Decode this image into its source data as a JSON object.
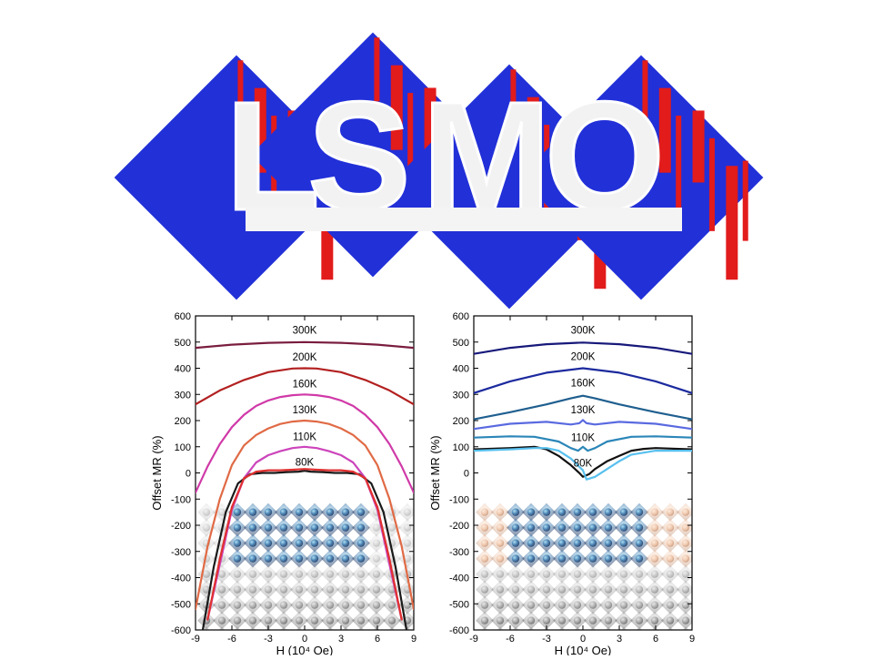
{
  "banner": {
    "letters": [
      "L",
      "S",
      "M",
      "O"
    ],
    "colors": {
      "domain_a": "#2230d8",
      "domain_b": "#e21b1b",
      "letter": "#f2f2f2"
    }
  },
  "chart_data": [
    {
      "type": "line",
      "xlabel": "H (10⁴ Oe)",
      "ylabel": "Offset MR (%)",
      "xlim": [
        -9,
        9
      ],
      "ylim": [
        -600,
        600
      ],
      "xticks": [
        "-9",
        "-6",
        "-3",
        "0",
        "3",
        "6",
        "9"
      ],
      "yticks": [
        "600",
        "500",
        "400",
        "300",
        "200",
        "100",
        "0",
        "-100",
        "-200",
        "-300",
        "-400",
        "-500",
        "-600"
      ],
      "grid": false,
      "series": [
        {
          "name": "300K",
          "color": "#7a1d3e",
          "x": [
            -9,
            -6,
            -3,
            0,
            3,
            6,
            9
          ],
          "y": [
            478,
            490,
            497,
            500,
            497,
            490,
            478
          ]
        },
        {
          "name": "200K",
          "color": "#b32020",
          "x": [
            -9,
            -7,
            -5,
            -3,
            -1,
            0,
            1,
            3,
            5,
            7,
            9
          ],
          "y": [
            262,
            315,
            355,
            385,
            399,
            400,
            399,
            385,
            355,
            315,
            262
          ]
        },
        {
          "name": "160K",
          "color": "#d03aa8",
          "x": [
            -9,
            -8,
            -7,
            -6,
            -5,
            -4,
            -3,
            -2,
            -1,
            0,
            1,
            2,
            3,
            4,
            5,
            6,
            7,
            8,
            9
          ],
          "y": [
            -75,
            25,
            110,
            175,
            222,
            256,
            277,
            290,
            297,
            300,
            297,
            290,
            277,
            256,
            222,
            175,
            110,
            25,
            -75
          ]
        },
        {
          "name": "130K",
          "color": "#e06a45",
          "x": [
            -9,
            -8,
            -7,
            -6,
            -5,
            -4,
            -3,
            -2,
            -1,
            0,
            1,
            2,
            3,
            4,
            5,
            6,
            7,
            8,
            9
          ],
          "y": [
            -520,
            -280,
            -100,
            30,
            105,
            145,
            170,
            187,
            196,
            200,
            196,
            187,
            170,
            145,
            105,
            30,
            -100,
            -280,
            -520
          ]
        },
        {
          "name": "110K",
          "color": "#cc44bb",
          "x": [
            -8,
            -7,
            -6,
            -5,
            -4,
            -3,
            -2,
            -1,
            0,
            1,
            2,
            3,
            4,
            5,
            6,
            7,
            8
          ],
          "y": [
            -560,
            -350,
            -140,
            -20,
            40,
            68,
            83,
            95,
            100,
            95,
            83,
            68,
            40,
            -20,
            -140,
            -350,
            -560
          ]
        },
        {
          "name": "80K",
          "color": "#1a1a1a",
          "x": [
            -8.4,
            -7.5,
            -6.5,
            -5.5,
            -4.5,
            -3.5,
            -2.5,
            -1.5,
            -0.5,
            0,
            0.5,
            1.5,
            2.5,
            3.5,
            4.5,
            5.5,
            6.5,
            7.5,
            8.4
          ],
          "y": [
            -600,
            -360,
            -150,
            -40,
            -5,
            0,
            0,
            3,
            5,
            8,
            5,
            3,
            0,
            0,
            -5,
            -40,
            -150,
            -360,
            -600
          ]
        },
        {
          "name": "80K",
          "color": "#e03030",
          "x": [
            -8,
            -7,
            -6,
            -5,
            -4,
            -3,
            -2,
            -1,
            0,
            1,
            2,
            3,
            4,
            5,
            6,
            7,
            8
          ],
          "y": [
            -560,
            -330,
            -130,
            -20,
            5,
            10,
            10,
            12,
            15,
            12,
            10,
            10,
            5,
            -20,
            -130,
            -330,
            -560
          ]
        }
      ],
      "annotations": [
        "300K",
        "200K",
        "160K",
        "130K",
        "110K",
        "80K"
      ]
    },
    {
      "type": "line",
      "xlabel": "H (10⁴ Oe)",
      "ylabel": "Offset MR (%)",
      "xlim": [
        -9,
        9
      ],
      "ylim": [
        -600,
        600
      ],
      "xticks": [
        "-9",
        "-6",
        "-3",
        "0",
        "3",
        "6",
        "9"
      ],
      "yticks": [
        "600",
        "500",
        "400",
        "300",
        "200",
        "100",
        "0",
        "-100",
        "-200",
        "-300",
        "-400",
        "-500",
        "-600"
      ],
      "grid": false,
      "series": [
        {
          "name": "300K",
          "color": "#17197a",
          "x": [
            -9,
            -6,
            -3,
            0,
            3,
            6,
            9
          ],
          "y": [
            455,
            478,
            492,
            498,
            492,
            478,
            455
          ]
        },
        {
          "name": "200K",
          "color": "#1c2a9e",
          "x": [
            -9,
            -6,
            -3,
            0,
            3,
            6,
            9
          ],
          "y": [
            305,
            350,
            383,
            400,
            383,
            350,
            305
          ]
        },
        {
          "name": "160K",
          "color": "#1f5f8f",
          "x": [
            -9,
            -6,
            -3,
            -1,
            0,
            1,
            3,
            6,
            9
          ],
          "y": [
            205,
            232,
            262,
            285,
            295,
            285,
            262,
            232,
            205
          ]
        },
        {
          "name": "130K",
          "color": "#5a6ae0",
          "x": [
            -9,
            -6,
            -3,
            -1,
            -0.3,
            0,
            0.3,
            1,
            3,
            6,
            9
          ],
          "y": [
            168,
            188,
            195,
            185,
            190,
            202,
            190,
            185,
            195,
            188,
            168
          ]
        },
        {
          "name": "110K",
          "color": "#2b86b8",
          "x": [
            -9,
            -6,
            -4,
            -2,
            -1,
            -0.4,
            0,
            0.4,
            1,
            2,
            4,
            6,
            9
          ],
          "y": [
            135,
            140,
            138,
            120,
            95,
            85,
            100,
            85,
            95,
            120,
            138,
            140,
            135
          ]
        },
        {
          "name": "80K",
          "color": "#111111",
          "x": [
            -9,
            -6,
            -4,
            -3,
            -2,
            -1,
            -0.3,
            0,
            0.5,
            1,
            2,
            3,
            4,
            5,
            6,
            9
          ],
          "y": [
            90,
            95,
            100,
            90,
            65,
            30,
            0,
            -15,
            -5,
            15,
            45,
            65,
            85,
            92,
            95,
            90
          ]
        },
        {
          "name": "80K",
          "color": "#58c0ee",
          "x": [
            -9,
            -6,
            -4,
            -3,
            -2,
            -1,
            0,
            0.3,
            1,
            2,
            3,
            4,
            6,
            9
          ],
          "y": [
            85,
            90,
            95,
            95,
            85,
            55,
            10,
            -25,
            -15,
            15,
            45,
            70,
            85,
            85
          ]
        }
      ],
      "annotations": [
        "300K",
        "200K",
        "160K",
        "130K",
        "110K",
        "80K"
      ]
    }
  ]
}
